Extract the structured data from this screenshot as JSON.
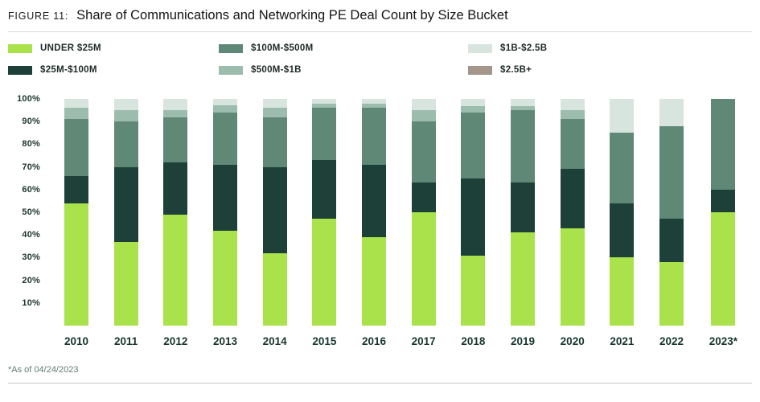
{
  "header": {
    "figure_label": "FIGURE 11:",
    "title": "Share of Communications and Networking PE Deal Count by Size Bucket"
  },
  "footnote": "*As of 04/24/2023",
  "chart_data": {
    "type": "bar",
    "stacked": true,
    "title": "Share of Communications and Networking PE Deal Count by Size Bucket",
    "xlabel": "",
    "ylabel": "",
    "ylim": [
      0,
      100
    ],
    "grid": false,
    "legend_position": "top",
    "y_ticks": [
      "100%",
      "90%",
      "80%",
      "70%",
      "60%",
      "50%",
      "40%",
      "30%",
      "20%",
      "10%"
    ],
    "categories": [
      "2010",
      "2011",
      "2012",
      "2013",
      "2014",
      "2015",
      "2016",
      "2017",
      "2018",
      "2019",
      "2020",
      "2021",
      "2022",
      "2023*"
    ],
    "series": [
      {
        "name": "UNDER $25M",
        "color": "#a9e24a",
        "values": [
          54,
          37,
          49,
          42,
          32,
          47,
          39,
          50,
          31,
          41,
          43,
          30,
          28,
          50
        ]
      },
      {
        "name": "$25M-$100M",
        "color": "#1d4038",
        "values": [
          12,
          33,
          23,
          29,
          38,
          26,
          32,
          13,
          34,
          22,
          26,
          24,
          19,
          10
        ]
      },
      {
        "name": "$100M-$500M",
        "color": "#5f8877",
        "values": [
          25,
          20,
          20,
          23,
          22,
          23,
          25,
          27,
          29,
          32,
          22,
          31,
          41,
          40
        ]
      },
      {
        "name": "$500M-$1B",
        "color": "#9cbcae",
        "values": [
          5,
          5,
          3,
          3,
          4,
          2,
          2,
          5,
          3,
          2,
          4,
          0,
          0,
          0
        ]
      },
      {
        "name": "$1B-$2.5B",
        "color": "#d7e5de",
        "values": [
          4,
          5,
          5,
          3,
          4,
          2,
          2,
          5,
          3,
          3,
          5,
          15,
          12,
          0
        ]
      },
      {
        "name": "$2.5B+",
        "color": "#a3968a",
        "values": [
          0,
          0,
          0,
          0,
          0,
          0,
          0,
          0,
          0,
          0,
          0,
          0,
          0,
          0
        ]
      }
    ]
  }
}
